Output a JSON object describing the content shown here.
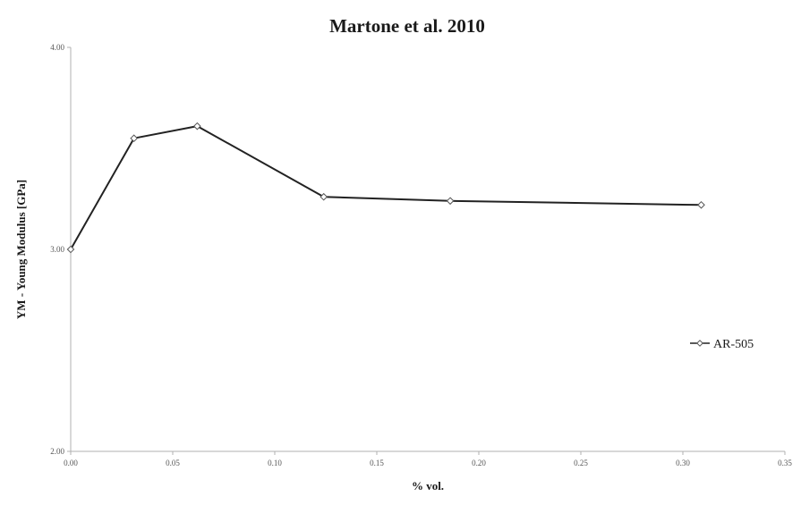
{
  "chart_data": {
    "type": "line",
    "title": "Martone et al. 2010",
    "xlabel": "% vol.",
    "ylabel": "YM - Young Modulus [GPa]",
    "xlim": [
      0.0,
      0.35
    ],
    "ylim": [
      2.0,
      4.0
    ],
    "x_ticks": [
      "0.00",
      "0.05",
      "0.10",
      "0.15",
      "0.20",
      "0.25",
      "0.30",
      "0.35"
    ],
    "y_ticks": [
      "2.00",
      "3.00",
      "4.00"
    ],
    "grid": false,
    "legend_position": "right",
    "series": [
      {
        "name": "AR-505",
        "color": "#222222",
        "marker": "diamond-open",
        "x": [
          0.0,
          0.031,
          0.062,
          0.124,
          0.186,
          0.309
        ],
        "y": [
          3.0,
          3.55,
          3.61,
          3.26,
          3.24,
          3.22
        ]
      }
    ]
  }
}
